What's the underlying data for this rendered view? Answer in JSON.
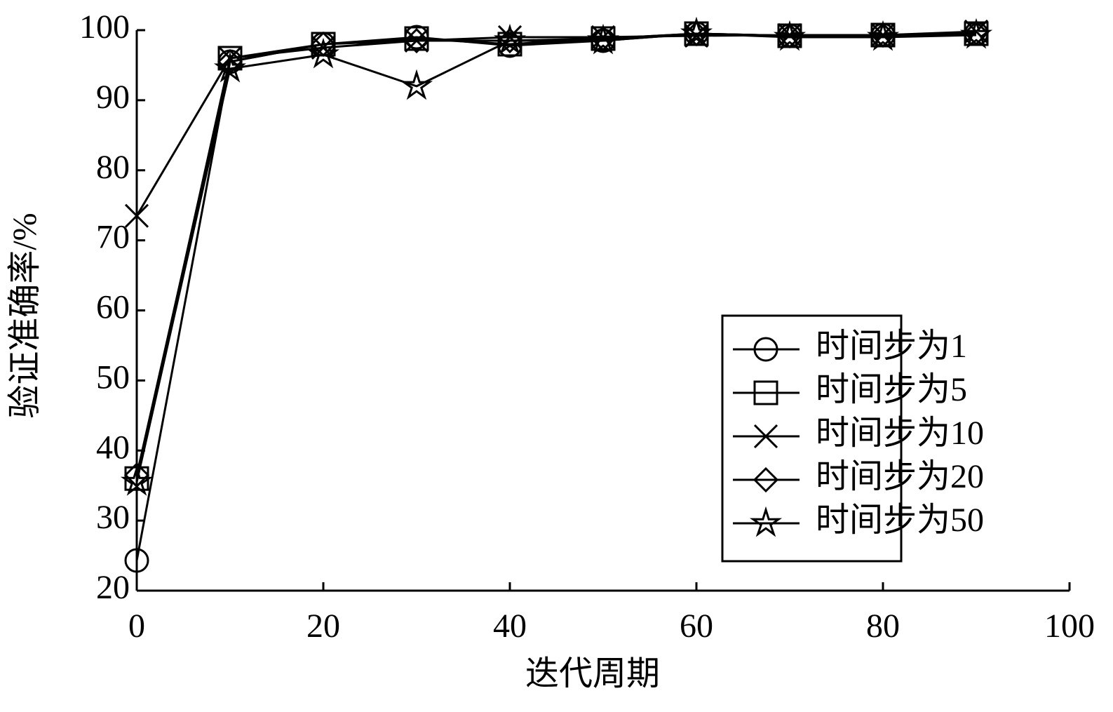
{
  "chart_data": {
    "type": "line",
    "x_label": "迭代周期",
    "y_label": "验证准确率/%",
    "x": [
      0,
      10,
      20,
      30,
      40,
      50,
      60,
      70,
      80,
      90
    ],
    "series": [
      {
        "name": "时间步为1",
        "color": "#000000",
        "marker": "circle",
        "values": [
          24.3,
          95.5,
          98,
          99,
          97.8,
          98.5,
          99.5,
          99.2,
          99.3,
          99.5
        ]
      },
      {
        "name": "时间步为5",
        "color": "#000000",
        "marker": "square",
        "values": [
          36,
          96,
          98,
          98.8,
          98,
          98.8,
          99.5,
          99.2,
          99.3,
          99.5
        ]
      },
      {
        "name": "时间步为10",
        "color": "#000000",
        "marker": "x",
        "values": [
          73.5,
          96,
          97.5,
          98.5,
          99,
          99,
          99.2,
          99.3,
          99.3,
          99.8
        ]
      },
      {
        "name": "时间步为20",
        "color": "#000000",
        "marker": "diamond",
        "values": [
          36.5,
          95.5,
          98,
          98.5,
          98.5,
          98.8,
          99.5,
          99.2,
          99.3,
          99.6
        ]
      },
      {
        "name": "时间步为50",
        "color": "#000000",
        "marker": "star",
        "values": [
          35.5,
          94.5,
          96.5,
          92,
          98.5,
          98.5,
          99.5,
          99,
          99,
          99.3
        ]
      }
    ],
    "xlim": [
      0,
      100
    ],
    "xticks": [
      0,
      20,
      40,
      60,
      80,
      100
    ],
    "ylim": [
      20,
      100
    ],
    "yticks": [
      20,
      30,
      40,
      50,
      60,
      70,
      80,
      90,
      100
    ],
    "legend": "lower right"
  }
}
